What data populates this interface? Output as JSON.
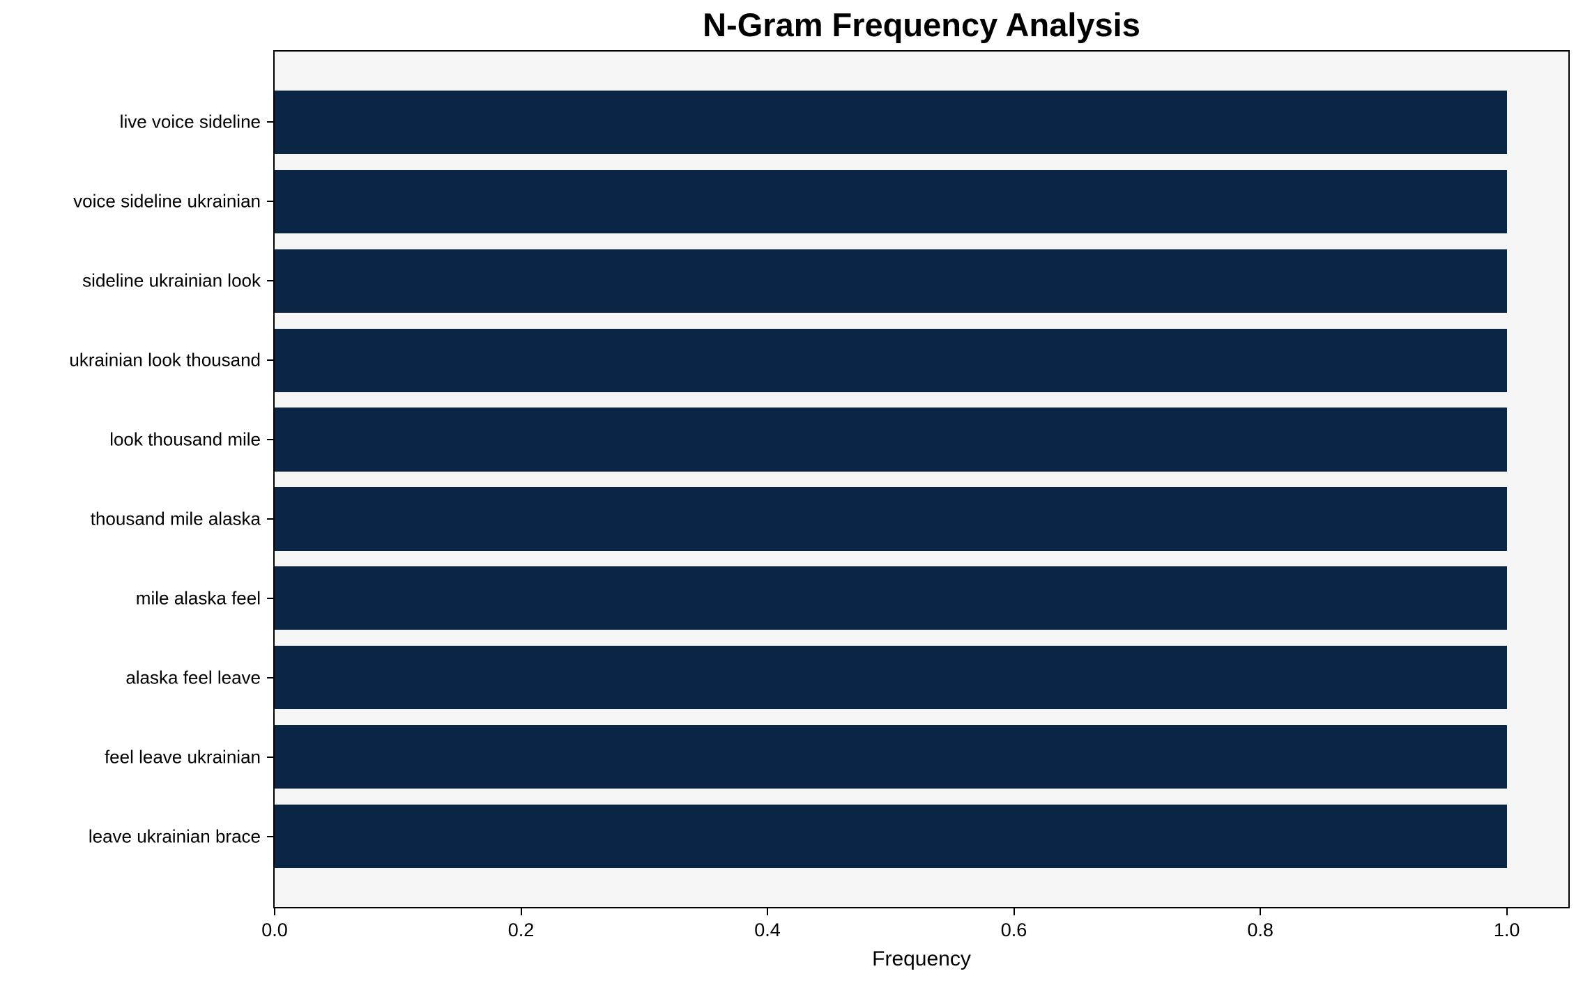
{
  "chart_data": {
    "type": "bar",
    "orientation": "horizontal",
    "title": "N-Gram Frequency Analysis",
    "xlabel": "Frequency",
    "ylabel": "",
    "categories": [
      "live voice sideline",
      "voice sideline ukrainian",
      "sideline ukrainian look",
      "ukrainian look thousand",
      "look thousand mile",
      "thousand mile alaska",
      "mile alaska feel",
      "alaska feel leave",
      "feel leave ukrainian",
      "leave ukrainian brace"
    ],
    "values": [
      1.0,
      1.0,
      1.0,
      1.0,
      1.0,
      1.0,
      1.0,
      1.0,
      1.0,
      1.0
    ],
    "xlim": [
      0,
      1.05
    ],
    "xticks": [
      {
        "value": 0.0,
        "label": "0.0"
      },
      {
        "value": 0.2,
        "label": "0.2"
      },
      {
        "value": 0.4,
        "label": "0.4"
      },
      {
        "value": 0.6,
        "label": "0.6"
      },
      {
        "value": 0.8,
        "label": "0.8"
      },
      {
        "value": 1.0,
        "label": "1.0"
      }
    ],
    "grid": false,
    "legend": null,
    "bar_height_fraction": 0.8,
    "colors": {
      "bar": "#0b2545",
      "plot_background": "#f5f5f6",
      "figure_background": "#ffffff",
      "spine": "#000000",
      "text": "#000000"
    }
  }
}
